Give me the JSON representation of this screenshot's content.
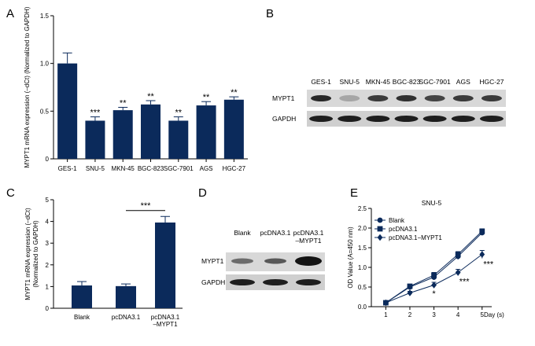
{
  "panels": {
    "A": {
      "label": "A",
      "chart_data": {
        "type": "bar",
        "categories": [
          "GES-1",
          "SNU-5",
          "MKN-45",
          "BGC-823",
          "SGC-7901",
          "AGS",
          "HGC-27"
        ],
        "values": [
          1.0,
          0.4,
          0.51,
          0.57,
          0.4,
          0.56,
          0.62
        ],
        "errors": [
          0.11,
          0.04,
          0.03,
          0.04,
          0.04,
          0.04,
          0.03
        ],
        "significance": [
          "",
          "***",
          "**",
          "**",
          "**",
          "**",
          "**"
        ],
        "ylabel": "MYPT1 mRNA expression (–dCt) (Normalized to GAPDH)",
        "ylim": [
          0,
          1.5
        ],
        "yticks": [
          "0",
          "0.5",
          "1.0",
          "1.5"
        ],
        "color": "#0b2a5b"
      }
    },
    "B": {
      "label": "B",
      "lanes": [
        "GES-1",
        "SNU-5",
        "MKN-45",
        "BGC-823",
        "SGC-7901",
        "AGS",
        "HGC-27"
      ],
      "rows": [
        "MYPT1",
        "GAPDH"
      ],
      "myptIntensity": [
        0.9,
        0.25,
        0.8,
        0.85,
        0.75,
        0.8,
        0.8
      ]
    },
    "C": {
      "label": "C",
      "chart_data": {
        "type": "bar",
        "categories": [
          "Blank",
          "pcDNA3.1",
          "pcDNA3.1\n–MYPT1"
        ],
        "category_lines": [
          [
            "Blank"
          ],
          [
            "pcDNA3.1"
          ],
          [
            "pcDNA3.1",
            "–MYPT1"
          ]
        ],
        "values": [
          1.05,
          1.02,
          3.95
        ],
        "errors": [
          0.18,
          0.1,
          0.28
        ],
        "significance_label": "***",
        "significance_between": [
          1,
          2
        ],
        "ylabel_line1": "MYPT1 mRNA expression (–dCt)",
        "ylabel_line2": "(Normalized to GAPDH)",
        "ylim": [
          0,
          5
        ],
        "yticks": [
          "0",
          "1",
          "2",
          "3",
          "4",
          "5"
        ],
        "color": "#0b2a5b"
      }
    },
    "D": {
      "label": "D",
      "lanes": [
        "Blank",
        "pcDNA3.1",
        "pcDNA3.1\n–MYPT1"
      ],
      "lane_lines": [
        [
          "Blank"
        ],
        [
          "pcDNA3.1"
        ],
        [
          "pcDNA3.1",
          "–MYPT1"
        ]
      ],
      "rows": [
        "MYPT1",
        "GAPDH"
      ],
      "myptIntensity": [
        0.55,
        0.65,
        1.0
      ]
    },
    "E": {
      "label": "E",
      "chart_data": {
        "type": "line",
        "title": "SNU-5",
        "x": [
          1,
          2,
          3,
          4,
          5
        ],
        "xticks": [
          "1",
          "2",
          "3",
          "4",
          "5"
        ],
        "xlabel": "Day (s)",
        "ylabel": "OD Value (A=450 nm)",
        "ylim": [
          0,
          2.5
        ],
        "yticks": [
          "0.0",
          "0.5",
          "1.0",
          "1.5",
          "2.0",
          "2.5"
        ],
        "series": [
          {
            "name": "Blank",
            "marker": "circle",
            "values": [
              0.1,
              0.5,
              0.75,
              1.28,
              1.88
            ],
            "errors": [
              0.02,
              0.05,
              0.07,
              0.08,
              0.06
            ]
          },
          {
            "name": "pcDNA3.1",
            "marker": "square",
            "values": [
              0.1,
              0.52,
              0.8,
              1.33,
              1.92
            ],
            "errors": [
              0.02,
              0.05,
              0.07,
              0.07,
              0.06
            ]
          },
          {
            "name": "pcDNA3.1−MYPT1",
            "marker": "diamond",
            "values": [
              0.1,
              0.35,
              0.55,
              0.87,
              1.33
            ],
            "errors": [
              0.02,
              0.04,
              0.07,
              0.08,
              0.1
            ]
          }
        ],
        "annotations": [
          {
            "x": 3,
            "label": "*"
          },
          {
            "x": 4,
            "label": "***"
          },
          {
            "x": 5,
            "label": "***"
          }
        ],
        "color": "#0b2a5b"
      }
    }
  }
}
